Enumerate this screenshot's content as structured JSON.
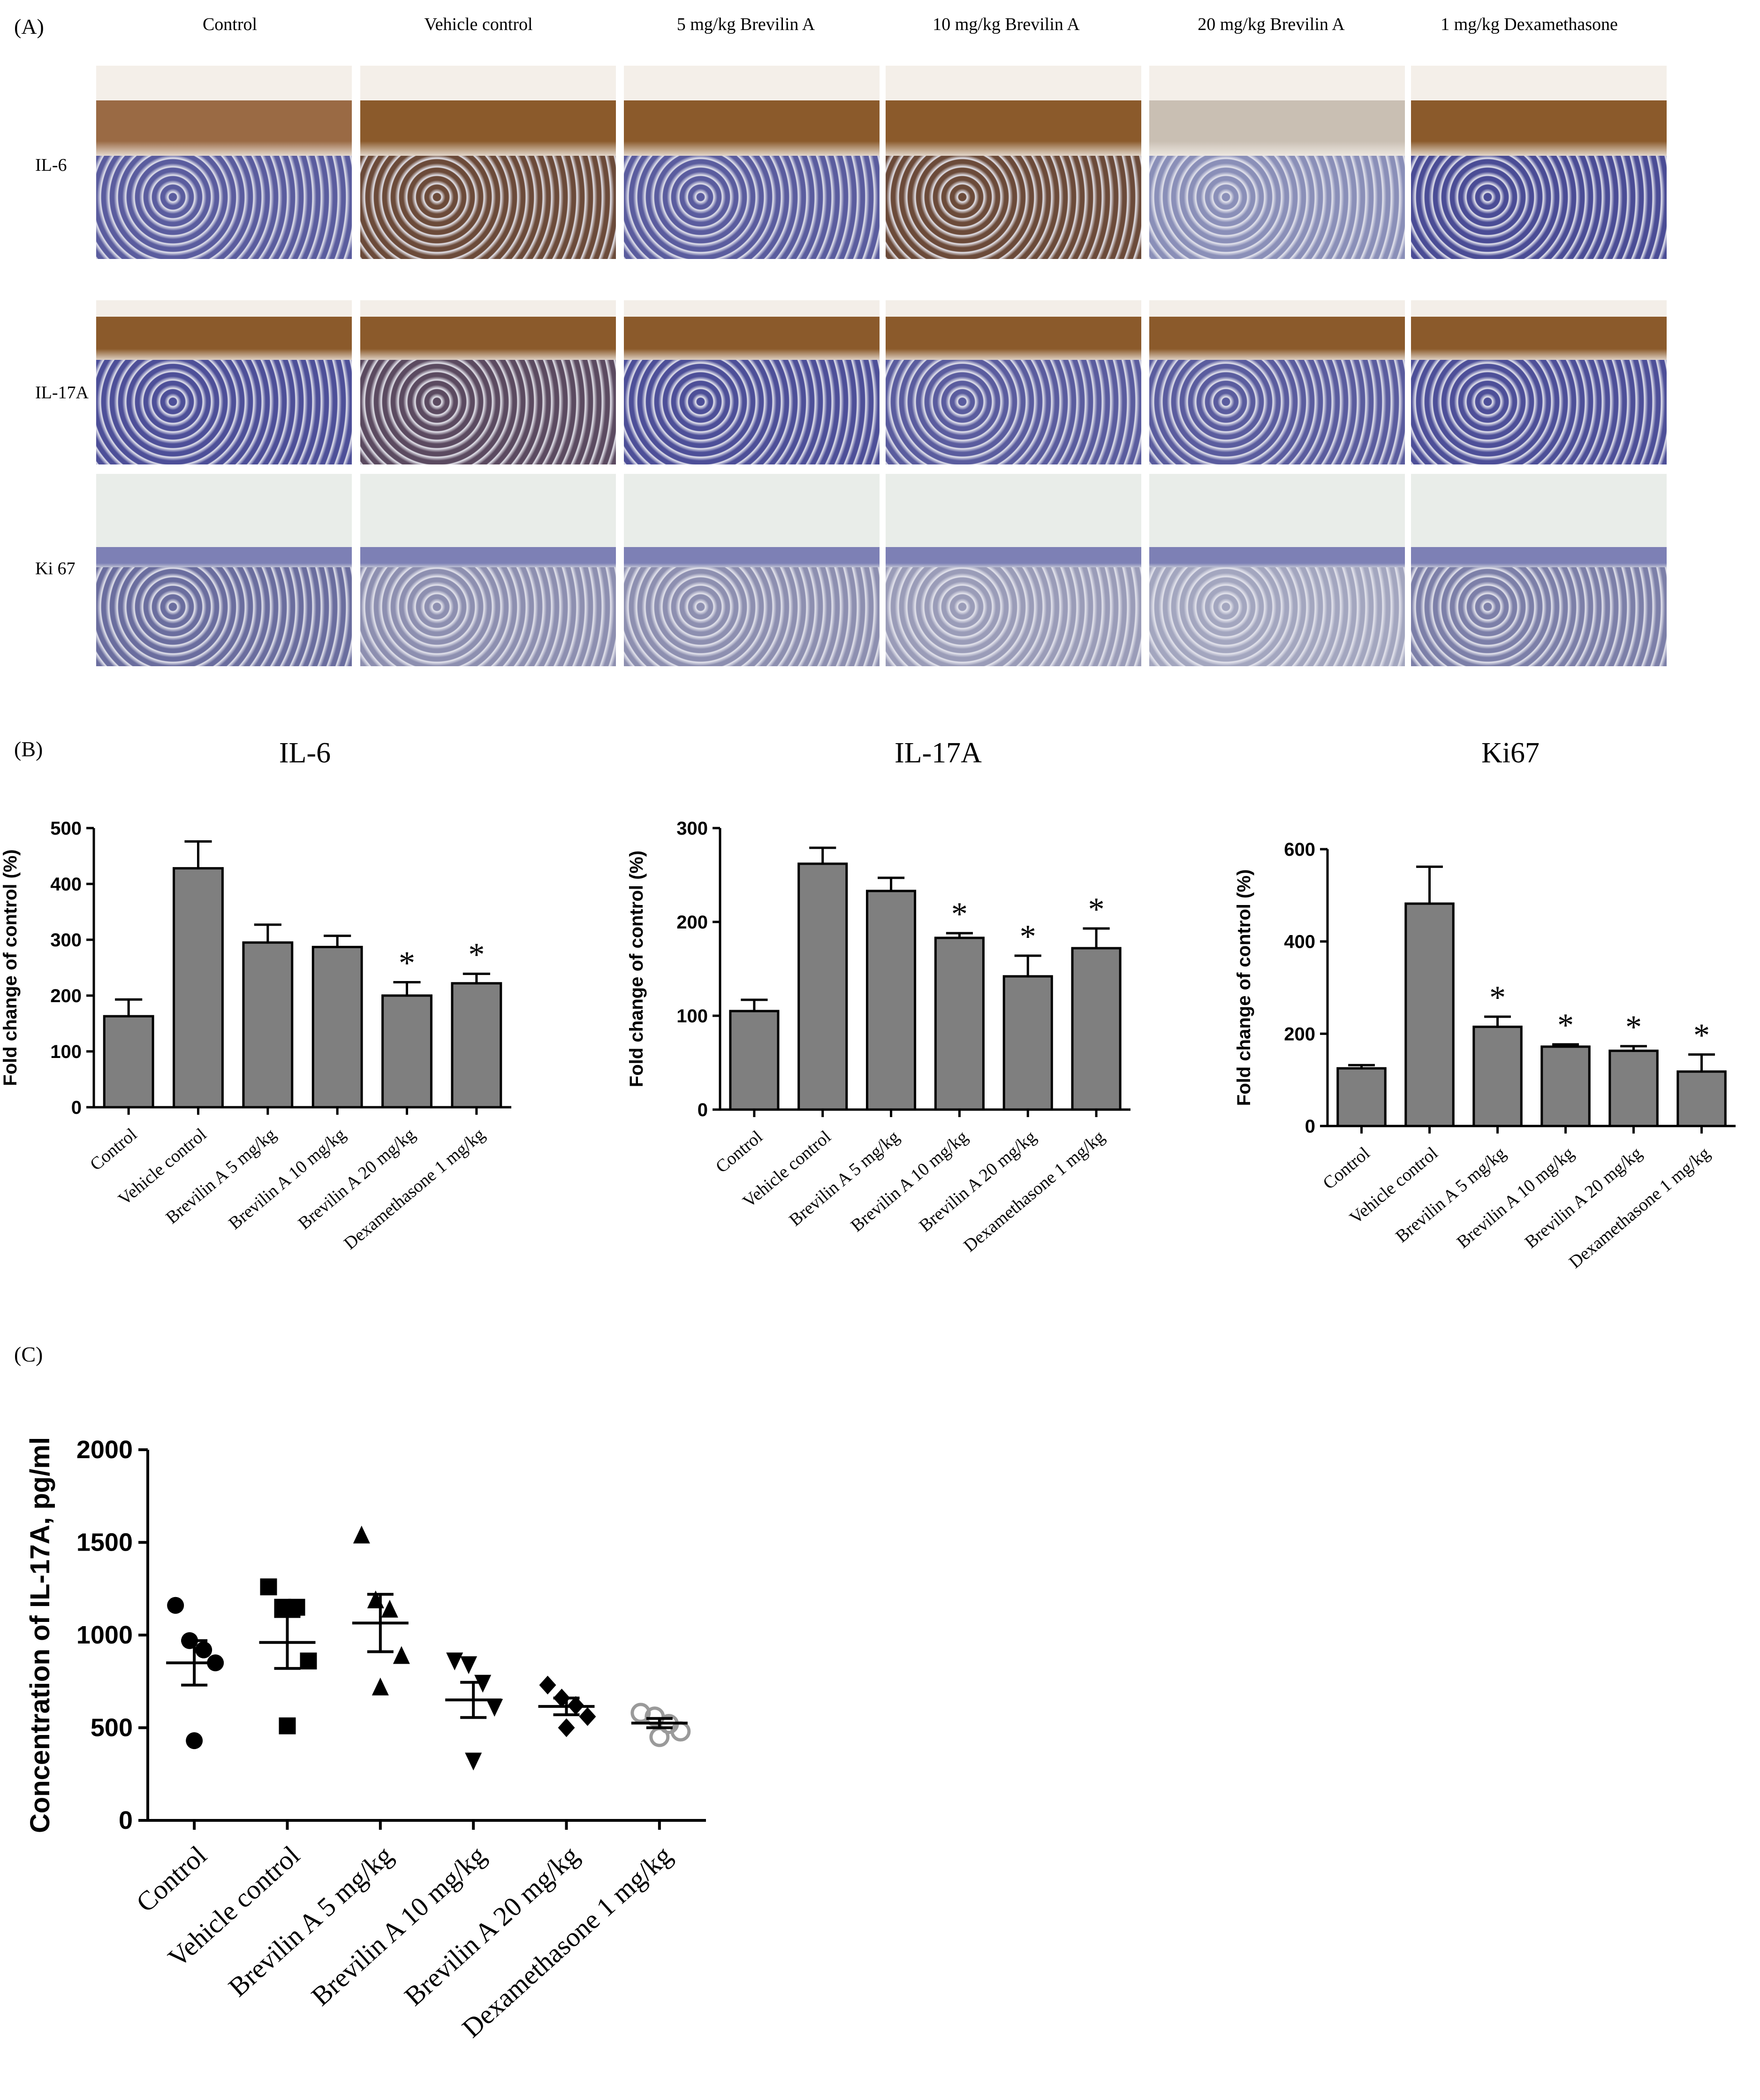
{
  "panel_a": {
    "label": "(A)",
    "columns": [
      "Control",
      "Vehicle control",
      "5 mg/kg Brevilin A",
      "10 mg/kg Brevilin A",
      "20 mg/kg Brevilin A",
      "1 mg/kg Dexamethasone"
    ],
    "rows": [
      "IL-6",
      "IL-17A",
      "Ki 67"
    ]
  },
  "panel_b": {
    "label": "(B)"
  },
  "panel_c": {
    "label": "(C)"
  },
  "colors": {
    "bar": "#7f7f7f",
    "stain_brown": "#8b5a2b",
    "stain_blue": "#3d3f8f",
    "grey_marker": "#9a9a9a"
  },
  "chart_data": [
    {
      "type": "bar",
      "title": "IL-6",
      "ylabel": "Fold change of control (%)",
      "categories": [
        "Control",
        "Vehicle control",
        "Brevilin A 5 mg/kg",
        "Brevilin A 10 mg/kg",
        "Brevilin A 20 mg/kg",
        "Dexamethasone 1 mg/kg"
      ],
      "values": [
        163,
        428,
        295,
        287,
        200,
        222
      ],
      "errors": [
        30,
        48,
        32,
        20,
        24,
        17
      ],
      "significant": [
        false,
        false,
        false,
        false,
        true,
        true
      ],
      "ylim": [
        0,
        500
      ],
      "yticks": [
        0,
        100,
        200,
        300,
        400,
        500
      ]
    },
    {
      "type": "bar",
      "title": "IL-17A",
      "ylabel": "Fold change of control (%)",
      "categories": [
        "Control",
        "Vehicle control",
        "Brevilin A 5 mg/kg",
        "Brevilin A 10 mg/kg",
        "Brevilin A 20 mg/kg",
        "Dexamethasone 1 mg/kg"
      ],
      "values": [
        105,
        262,
        233,
        183,
        142,
        172
      ],
      "errors": [
        12,
        17,
        14,
        5,
        22,
        21
      ],
      "significant": [
        false,
        false,
        false,
        true,
        true,
        true
      ],
      "ylim": [
        0,
        300
      ],
      "yticks": [
        0,
        100,
        200,
        300
      ]
    },
    {
      "type": "bar",
      "title": "Ki67",
      "ylabel": "Fold change of control (%)",
      "categories": [
        "Control",
        "Vehicle control",
        "Brevilin A 5 mg/kg",
        "Brevilin A 10 mg/kg",
        "Brevilin A 20 mg/kg",
        "Dexamethasone 1 mg/kg"
      ],
      "values": [
        125,
        482,
        215,
        172,
        163,
        118
      ],
      "errors": [
        7,
        80,
        22,
        5,
        10,
        37
      ],
      "significant": [
        false,
        false,
        true,
        true,
        true,
        true
      ],
      "ylim": [
        0,
        600
      ],
      "yticks": [
        0,
        200,
        400,
        600
      ]
    },
    {
      "type": "scatter",
      "ylabel": "Concentration of IL-17A, pg/ml",
      "categories": [
        "Control",
        "Vehicle control",
        "Brevilin A 5 mg/kg",
        "Brevilin A 10 mg/kg",
        "Brevilin A 20 mg/kg",
        "Dexamethasone 1 mg/kg"
      ],
      "markers": [
        "circle",
        "square",
        "triangle-up",
        "triangle-down",
        "diamond",
        "open-circle"
      ],
      "points": [
        [
          1160,
          970,
          920,
          850,
          430
        ],
        [
          1260,
          1150,
          1150,
          860,
          510
        ],
        [
          1540,
          1190,
          1140,
          890,
          720
        ],
        [
          860,
          840,
          740,
          610,
          320
        ],
        [
          730,
          660,
          620,
          560,
          500
        ],
        [
          580,
          560,
          520,
          480,
          450
        ]
      ],
      "means": [
        850,
        960,
        1065,
        650,
        615,
        525
      ],
      "sems": [
        120,
        140,
        155,
        95,
        45,
        25
      ],
      "ylim": [
        0,
        2000
      ],
      "yticks": [
        0,
        500,
        1000,
        1500,
        2000
      ]
    }
  ]
}
